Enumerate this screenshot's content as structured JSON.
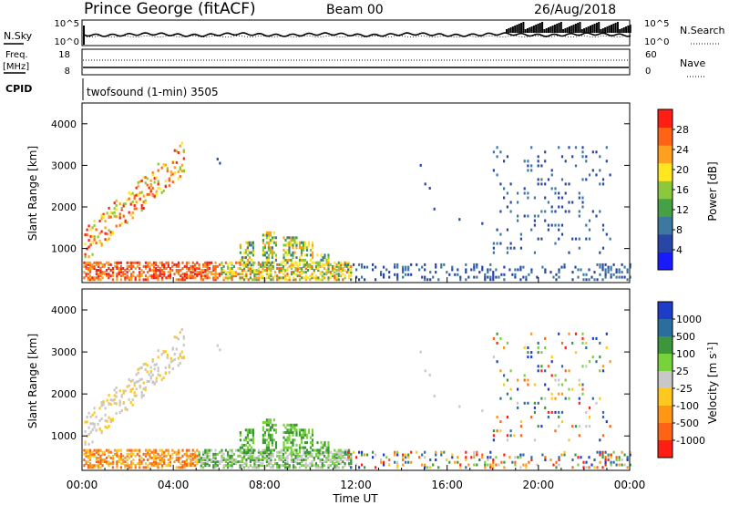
{
  "header": {
    "station": "Prince George (fitACF)",
    "beam": "Beam 00",
    "date": "26/Aug/2018"
  },
  "noise_panel": {
    "left_label": "N.Sky",
    "right_label": "N.Search",
    "left_ticks": [
      "10^5",
      "10^0"
    ],
    "right_ticks": [
      "10^5",
      "10^0"
    ]
  },
  "freq_panel": {
    "left_label_line1": "Freq.",
    "left_label_line2": "[MHz]",
    "right_label": "Nave",
    "left_ticks": [
      "18",
      "8"
    ],
    "right_ticks": [
      "60",
      "0"
    ]
  },
  "cpid": {
    "label": "CPID",
    "value": "twofsound (1-min) 3505"
  },
  "chart_data": [
    {
      "type": "heatmap",
      "name": "power",
      "ylabel": "Slant Range [km]",
      "yticks": [
        "4000",
        "3000",
        "2000",
        "1000"
      ],
      "ylim": [
        180,
        4500
      ],
      "xlim_hours": [
        0,
        24
      ],
      "colorbar_label": "Power [dB]",
      "colorbar_ticks": [
        "28",
        "24",
        "20",
        "16",
        "12",
        "8",
        "4"
      ],
      "colors": [
        "#1a1aff",
        "#2846a8",
        "#3c78a0",
        "#46a046",
        "#8cc83c",
        "#ffe61e",
        "#ffa01e",
        "#ff6414",
        "#ff1e14"
      ]
    },
    {
      "type": "heatmap",
      "name": "velocity",
      "ylabel": "Slant Range [km]",
      "yticks": [
        "4000",
        "3000",
        "2000",
        "1000"
      ],
      "ylim": [
        180,
        4500
      ],
      "xlim_hours": [
        0,
        24
      ],
      "xticks": [
        "00:00",
        "04:00",
        "08:00",
        "12:00",
        "16:00",
        "20:00",
        "00:00"
      ],
      "xlabel": "Time UT",
      "colorbar_label": "Velocity [m s^-1]",
      "colorbar_ticks": [
        "1000",
        "500",
        "100",
        "25",
        "-25",
        "-100",
        "-500",
        "-1000"
      ],
      "colors": [
        "#1e3cc8",
        "#2a6ea0",
        "#3c963c",
        "#78d23c",
        "#c8c8c8",
        "#ffc81e",
        "#ff9614",
        "#ff6414",
        "#ff1e14"
      ]
    }
  ]
}
